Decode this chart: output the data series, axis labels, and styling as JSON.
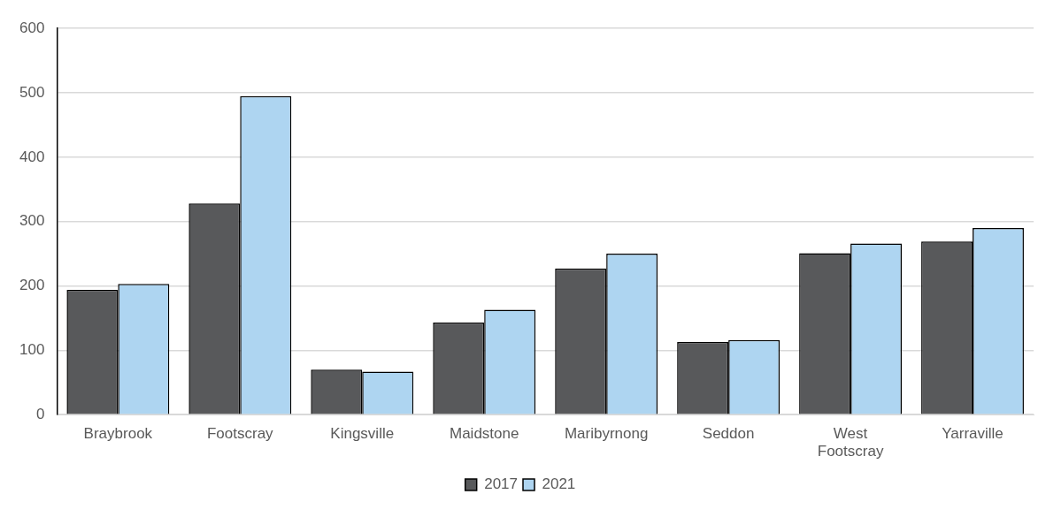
{
  "chart_data": {
    "type": "bar",
    "categories": [
      "Braybrook",
      "Footscray",
      "Kingsville",
      "Maidstone",
      "Maribyrnong",
      "Seddon",
      "West Footscray",
      "Yarraville"
    ],
    "series": [
      {
        "name": "2017",
        "color": "#58595b",
        "values": [
          194,
          328,
          70,
          143,
          227,
          113,
          251,
          269
        ]
      },
      {
        "name": "2021",
        "color": "#aed5f1",
        "values": [
          203,
          495,
          67,
          163,
          250,
          116,
          266,
          290
        ]
      }
    ],
    "ylim": [
      0,
      600
    ],
    "yticks": [
      0,
      100,
      200,
      300,
      400,
      500,
      600
    ],
    "grid": "y",
    "legend": "bottom"
  }
}
